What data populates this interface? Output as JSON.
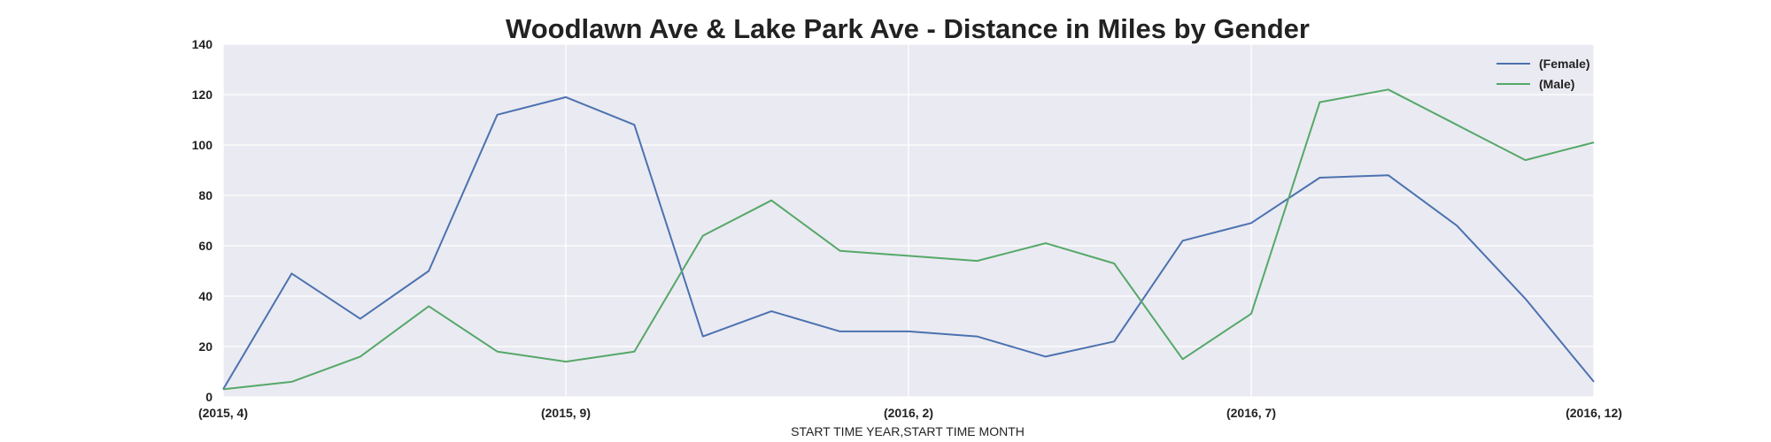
{
  "chart_data": {
    "type": "line",
    "title": "Woodlawn Ave & Lake Park Ave - Distance in Miles by Gender",
    "xlabel": "START TIME YEAR,START TIME MONTH",
    "ylabel": "",
    "x": [
      "(2015, 4)",
      "(2015, 5)",
      "(2015, 6)",
      "(2015, 7)",
      "(2015, 8)",
      "(2015, 9)",
      "(2015, 10)",
      "(2015, 11)",
      "(2015, 12)",
      "(2016, 1)",
      "(2016, 2)",
      "(2016, 3)",
      "(2016, 4)",
      "(2016, 5)",
      "(2016, 6)",
      "(2016, 7)",
      "(2016, 8)",
      "(2016, 9)",
      "(2016, 10)",
      "(2016, 11)",
      "(2016, 12)"
    ],
    "x_tick_labels": [
      "(2015, 4)",
      "(2015, 9)",
      "(2016, 2)",
      "(2016, 7)",
      "(2016, 12)"
    ],
    "ylim": [
      0,
      140
    ],
    "y_ticks": [
      0,
      20,
      40,
      60,
      80,
      100,
      120,
      140
    ],
    "grid": true,
    "legend_position": "top-right",
    "series": [
      {
        "name": "(Female)",
        "color": "#4c72b0",
        "values": [
          3,
          49,
          31,
          50,
          112,
          119,
          108,
          24,
          34,
          26,
          26,
          24,
          16,
          22,
          62,
          69,
          87,
          88,
          68,
          39,
          6
        ]
      },
      {
        "name": "(Male)",
        "color": "#55a868",
        "values": [
          3,
          6,
          16,
          36,
          18,
          14,
          18,
          64,
          78,
          58,
          56,
          54,
          61,
          53,
          15,
          33,
          117,
          122,
          108,
          94,
          101
        ]
      }
    ],
    "colors": {
      "plot_bg": "#eaeaf2",
      "grid": "#ffffff"
    }
  }
}
